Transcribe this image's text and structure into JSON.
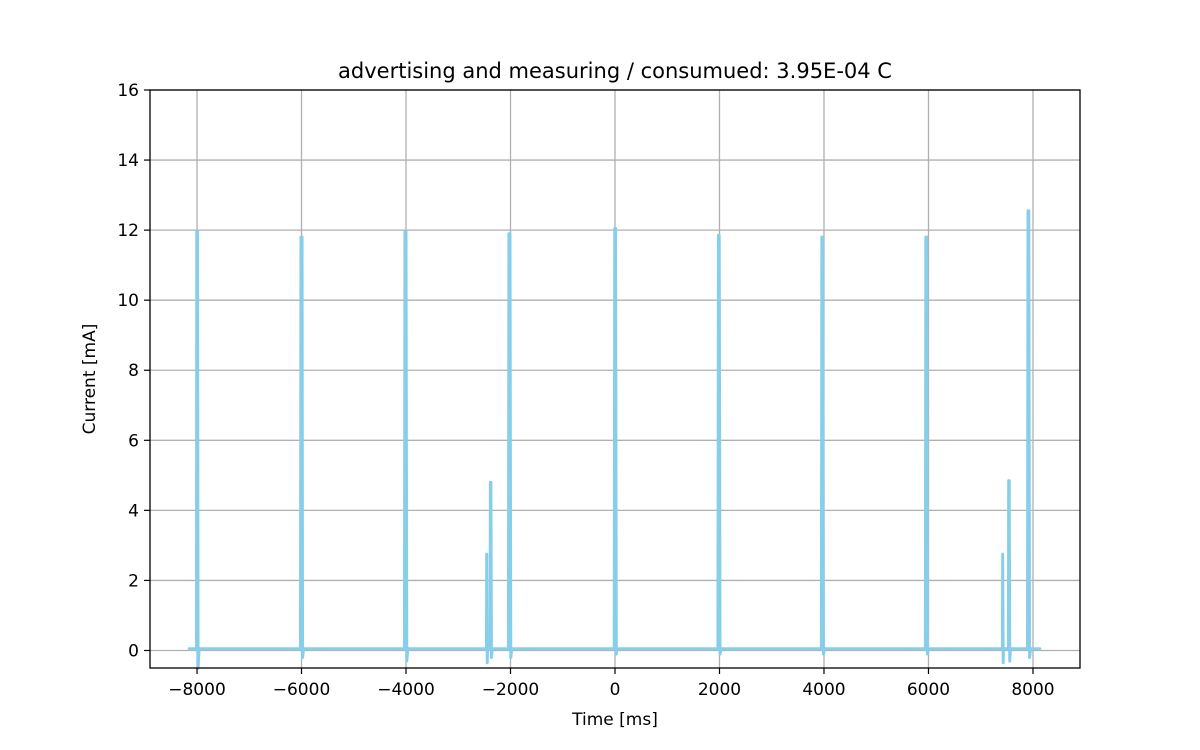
{
  "chart_data": {
    "type": "line",
    "title": "advertising and measuring / consumued: 3.95E-04 C",
    "xlabel": "Time [ms]",
    "ylabel": "Current [mA]",
    "xlim": [
      -8900,
      8900
    ],
    "ylim": [
      -0.5,
      16
    ],
    "x_ticks": [
      -8000,
      -6000,
      -4000,
      -2000,
      0,
      2000,
      4000,
      6000,
      8000
    ],
    "x_tick_labels": [
      "−8000",
      "−6000",
      "−4000",
      "−2000",
      "0",
      "2000",
      "4000",
      "6000",
      "8000"
    ],
    "y_ticks": [
      0,
      2,
      4,
      6,
      8,
      10,
      12,
      14,
      16
    ],
    "y_tick_labels": [
      "0",
      "2",
      "4",
      "6",
      "8",
      "10",
      "12",
      "14",
      "16"
    ],
    "grid": true,
    "colors": {
      "series": "#87ceeb"
    },
    "series": [
      {
        "x": [
          -8150,
          -8010,
          -8005,
          -7990,
          -7980,
          -7960,
          -7950,
          -6020,
          -6010,
          -5990,
          -5980,
          -5960,
          -5950,
          -4030,
          -4020,
          -4000,
          -3985,
          -3965,
          -3955,
          -2460,
          -2455,
          -2445,
          -2440,
          -2410,
          -2390,
          -2385,
          -2375,
          -2365,
          -2350,
          -2040,
          -2030,
          -2010,
          -1995,
          -1975,
          -1965,
          -15,
          -5,
          10,
          25,
          40,
          1970,
          1980,
          1995,
          2010,
          2030,
          2040,
          3950,
          3960,
          3975,
          3990,
          4010,
          4020,
          5940,
          5950,
          5965,
          5980,
          6000,
          6010,
          7415,
          7420,
          7430,
          7435,
          7460,
          7530,
          7535,
          7545,
          7555,
          7570,
          7895,
          7905,
          7920,
          7935,
          7955,
          7965,
          8130
        ],
        "y": [
          0.05,
          0.05,
          11.95,
          11.95,
          -0.5,
          0.05,
          0.05,
          0.05,
          11.8,
          11.8,
          -0.2,
          0.05,
          0.05,
          0.05,
          11.95,
          11.95,
          -0.3,
          0.05,
          0.05,
          0.05,
          2.75,
          -0.35,
          0.05,
          0.05,
          0.05,
          4.8,
          4.8,
          -0.2,
          0.05,
          0.05,
          11.9,
          11.9,
          -0.2,
          0.05,
          0.05,
          0.05,
          12.05,
          12.05,
          -0.1,
          0.05,
          0.05,
          11.85,
          11.85,
          -0.1,
          0.05,
          0.05,
          0.05,
          11.8,
          11.8,
          -0.1,
          0.05,
          0.05,
          0.05,
          11.8,
          11.8,
          -0.1,
          0.05,
          0.05,
          0.05,
          2.75,
          -0.35,
          0.05,
          0.05,
          0.05,
          4.85,
          4.85,
          -0.3,
          0.05,
          0.05,
          12.55,
          12.55,
          -0.2,
          0.05,
          0.05,
          0.05
        ]
      }
    ]
  }
}
